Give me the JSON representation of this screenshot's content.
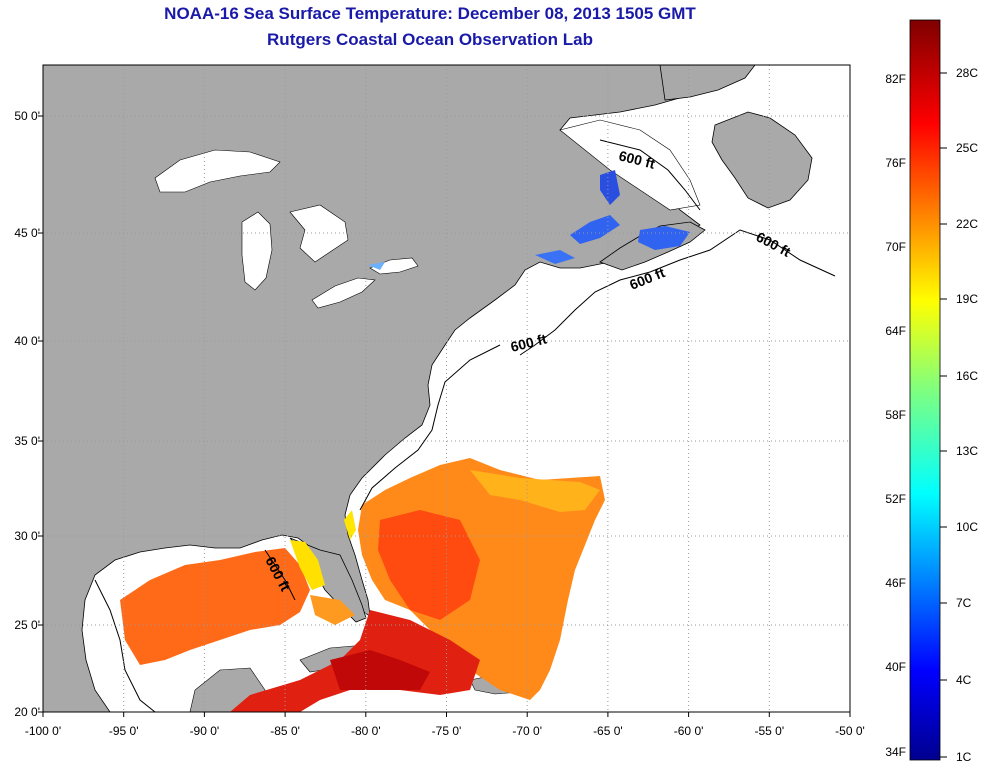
{
  "title": "NOAA-16 Sea Surface Temperature:  December 08, 2013 1505 GMT",
  "subtitle": "Rutgers Coastal Ocean Observation Lab",
  "map": {
    "lon_ticks": [
      "-100 0'",
      "-95 0'",
      "-90 0'",
      "-85 0'",
      "-80 0'",
      "-75 0'",
      "-70 0'",
      "-65 0'",
      "-60 0'",
      "-55 0'",
      "-50 0'"
    ],
    "lat_ticks": [
      "50 0'",
      "45 0'",
      "40 0'",
      "35 0'",
      "30 0'",
      "25 0'",
      "20 0'"
    ],
    "lon_range": [
      -100,
      -50
    ],
    "lat_range": [
      20,
      52
    ],
    "contour_labels": [
      "600 ft",
      "600 ft",
      "600 ft",
      "600 ft",
      "600 ft"
    ],
    "colors": {
      "land": "#a9a9a9",
      "grid": "#9a9a9a",
      "coast": "#000000"
    }
  },
  "colorbar": {
    "fahrenheit": [
      "82F",
      "76F",
      "70F",
      "64F",
      "58F",
      "52F",
      "46F",
      "40F",
      "34F"
    ],
    "celsius": [
      "28C",
      "25C",
      "22C",
      "19C",
      "16C",
      "13C",
      "10C",
      "7C",
      "4C",
      "1C"
    ]
  }
}
